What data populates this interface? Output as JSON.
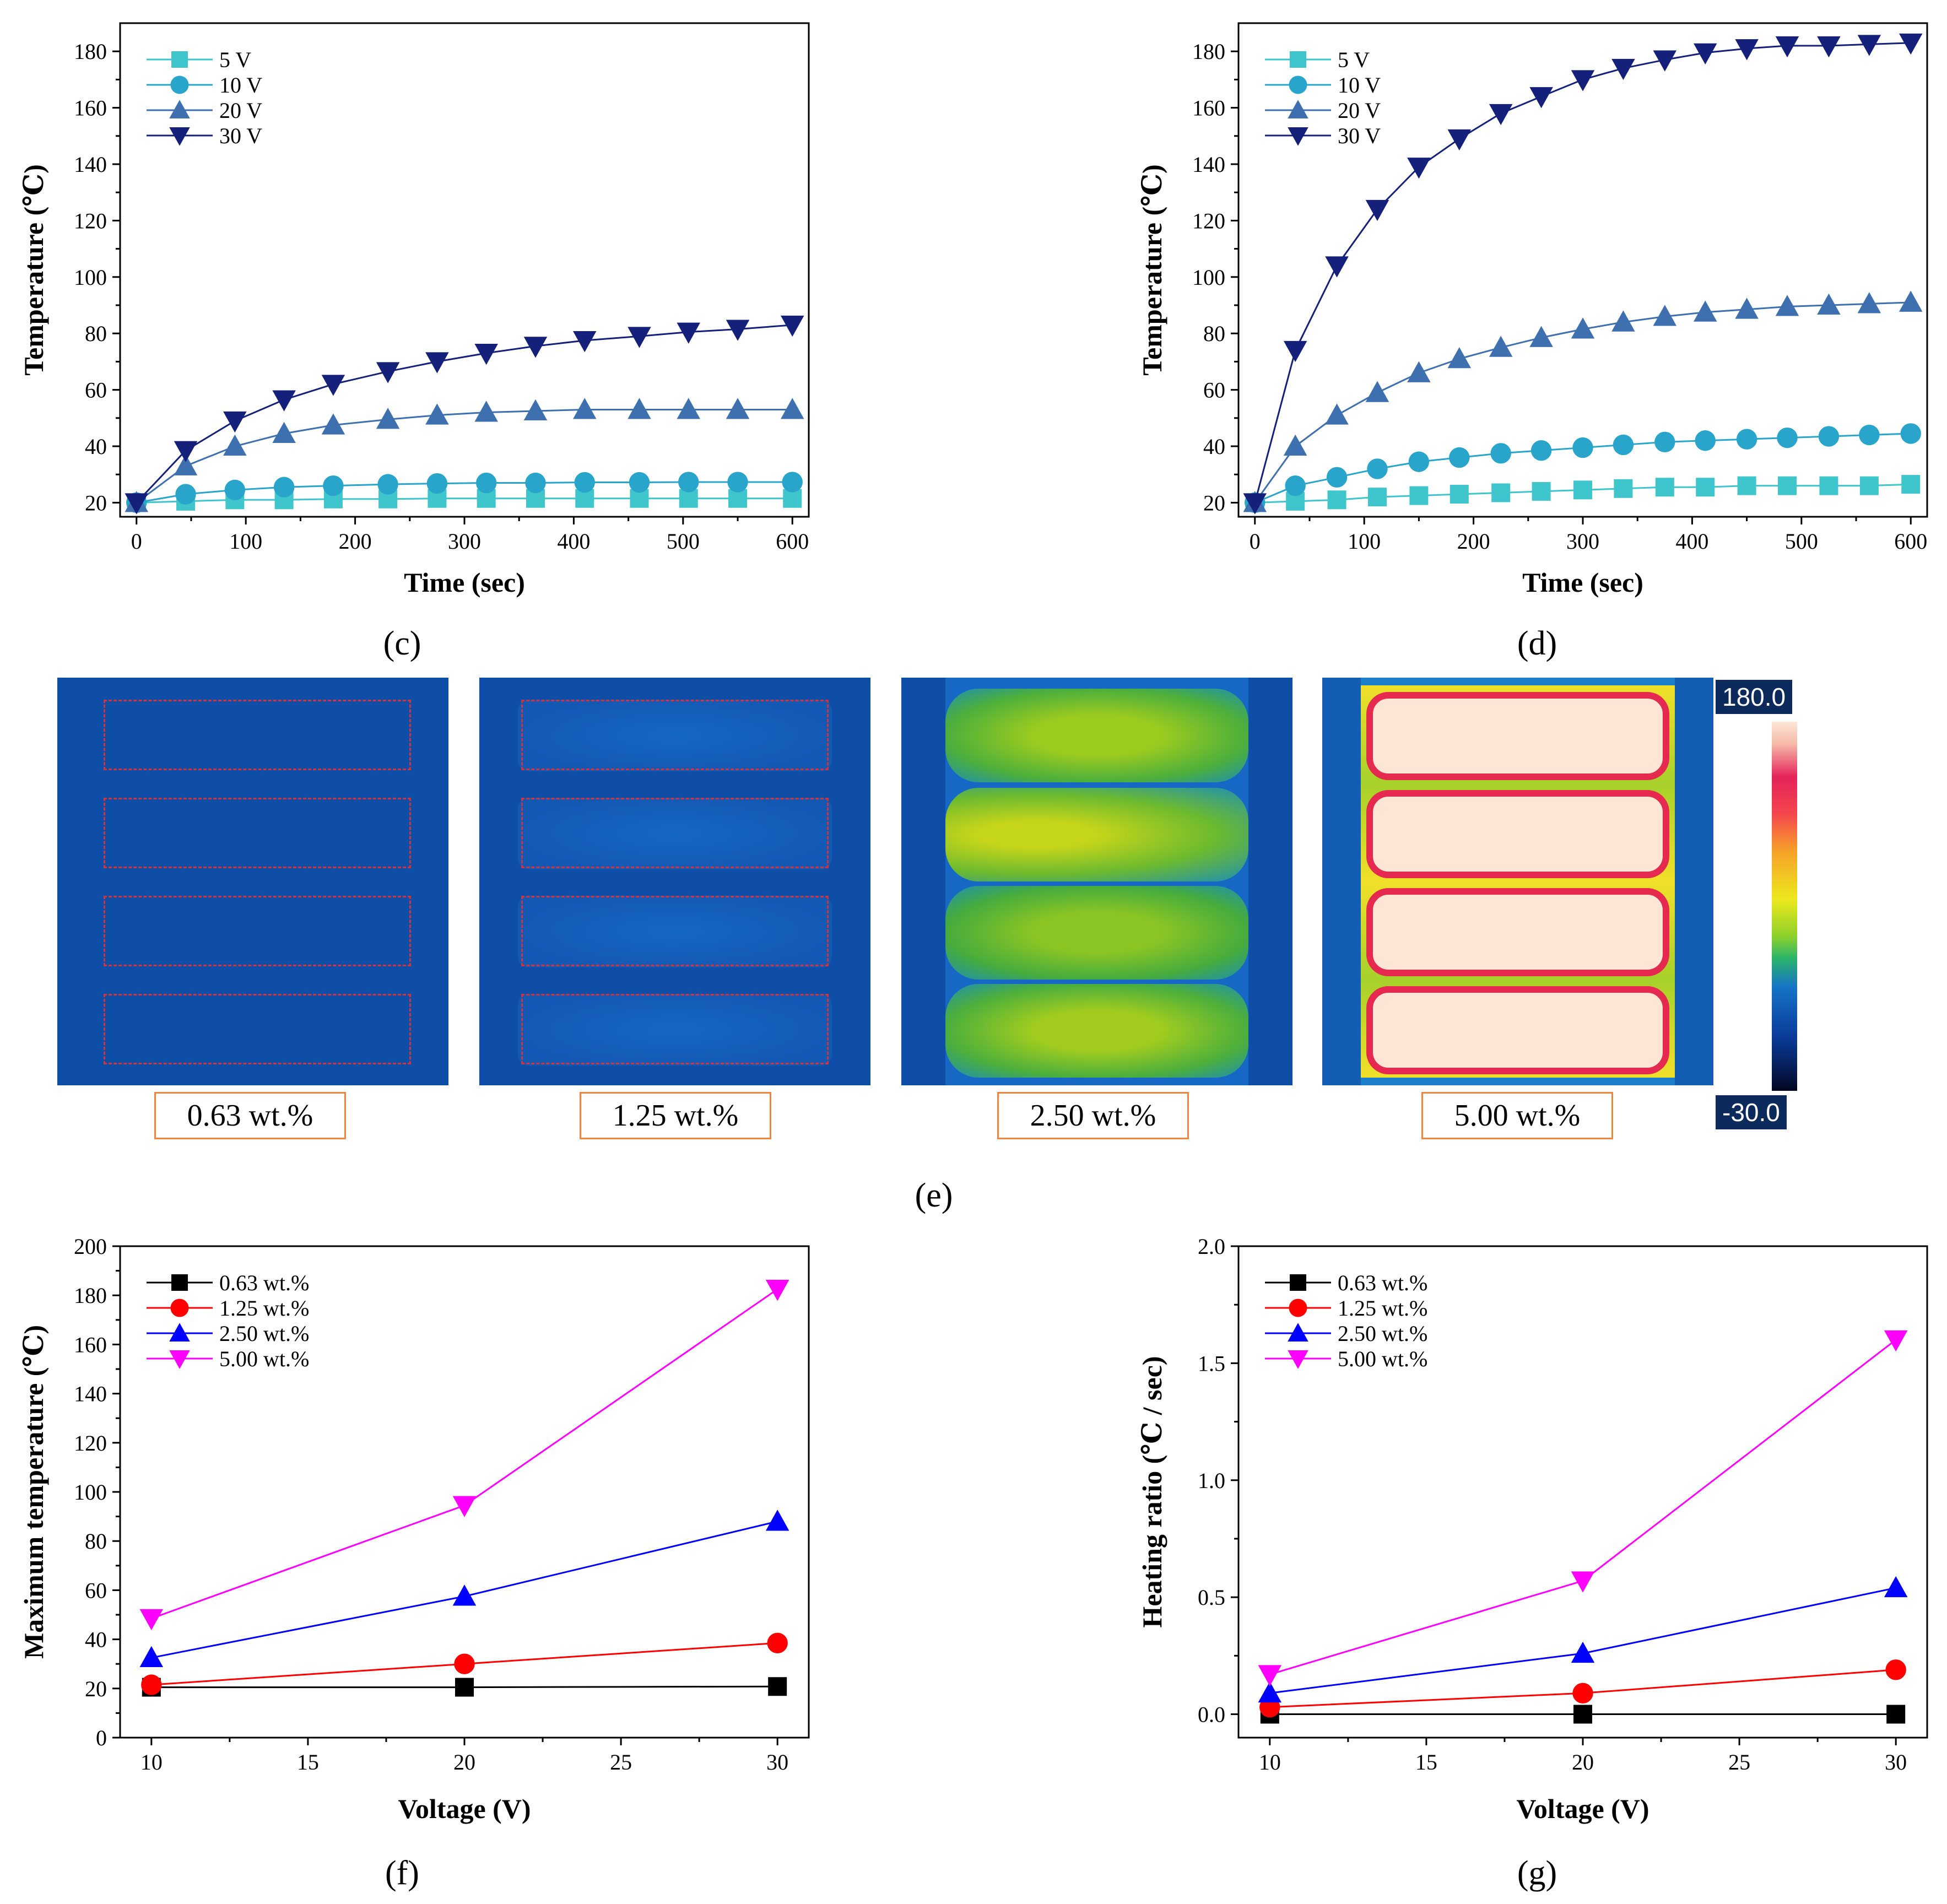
{
  "panels": {
    "c": "(c)",
    "d": "(d)",
    "e": "(e)",
    "f": "(f)",
    "g": "(g)"
  },
  "thermal": {
    "captions": [
      "0.63 wt.%",
      "1.25 wt.%",
      "2.50 wt.%",
      "5.00 wt.%"
    ],
    "scale_max": "180.0",
    "scale_min": "-30.0"
  },
  "chart_data": [
    {
      "id": "c",
      "type": "line",
      "title": "",
      "xlabel": "Time (sec)",
      "ylabel": "Temperature (℃)",
      "xlim": [
        -15,
        615
      ],
      "ylim": [
        15,
        190
      ],
      "xticks": [
        0,
        100,
        200,
        300,
        400,
        500,
        600
      ],
      "yticks": [
        20,
        40,
        60,
        80,
        100,
        120,
        140,
        160,
        180
      ],
      "legend_position": "top-left",
      "x": [
        0,
        45,
        90,
        135,
        180,
        230,
        275,
        320,
        365,
        410,
        460,
        505,
        550,
        600
      ],
      "series": [
        {
          "name": "5 V",
          "label": "  5 V",
          "marker": "square",
          "color": "#3ec6cc",
          "values": [
            20,
            20.5,
            21,
            21,
            21.3,
            21.3,
            21.5,
            21.5,
            21.5,
            21.5,
            21.5,
            21.5,
            21.5,
            21.5
          ]
        },
        {
          "name": "10 V",
          "label": "10 V",
          "marker": "circle",
          "color": "#29a5cc",
          "values": [
            20,
            23,
            24.5,
            25.5,
            26,
            26.5,
            26.8,
            27,
            27,
            27.2,
            27.2,
            27.3,
            27.3,
            27.3
          ]
        },
        {
          "name": "20 V",
          "label": "20 V",
          "marker": "triangle-up",
          "color": "#3e6fae",
          "values": [
            20,
            33,
            40,
            44.5,
            47.5,
            49.5,
            51,
            52,
            52.5,
            53,
            53,
            53,
            53,
            53
          ]
        },
        {
          "name": "30 V",
          "label": "30 V",
          "marker": "triangle-down",
          "color": "#14207a",
          "values": [
            20,
            38.5,
            49,
            56.5,
            62,
            66.5,
            70,
            73,
            75.5,
            77.5,
            79,
            80.5,
            81.5,
            83
          ]
        }
      ]
    },
    {
      "id": "d",
      "type": "line",
      "title": "",
      "xlabel": "Time (sec)",
      "ylabel": "Temperature (℃)",
      "xlim": [
        -15,
        615
      ],
      "ylim": [
        15,
        190
      ],
      "xticks": [
        0,
        100,
        200,
        300,
        400,
        500,
        600
      ],
      "yticks": [
        20,
        40,
        60,
        80,
        100,
        120,
        140,
        160,
        180
      ],
      "legend_position": "top-left",
      "x": [
        0,
        37,
        75,
        112,
        150,
        187,
        225,
        262,
        300,
        337,
        375,
        412,
        450,
        487,
        525,
        562,
        600
      ],
      "series": [
        {
          "name": "5 V",
          "label": "  5 V",
          "marker": "square",
          "color": "#3ec6cc",
          "values": [
            20,
            20.5,
            21,
            22,
            22.5,
            23,
            23.5,
            24,
            24.5,
            25,
            25.5,
            25.5,
            26,
            26,
            26,
            26,
            26.5
          ]
        },
        {
          "name": "10 V",
          "label": "10 V",
          "marker": "circle",
          "color": "#29a5cc",
          "values": [
            20,
            26,
            29,
            32,
            34.5,
            36,
            37.5,
            38.5,
            39.5,
            40.5,
            41.5,
            42,
            42.5,
            43,
            43.5,
            44,
            44.5
          ]
        },
        {
          "name": "20 V",
          "label": "20 V",
          "marker": "triangle-up",
          "color": "#3e6fae",
          "values": [
            20,
            40,
            51,
            59,
            66,
            71,
            75,
            78.5,
            81.5,
            84,
            86,
            87.5,
            88.5,
            89.5,
            90,
            90.5,
            91
          ]
        },
        {
          "name": "30 V",
          "label": "30 V",
          "marker": "triangle-down",
          "color": "#14207a",
          "values": [
            20,
            74,
            104,
            124,
            139,
            149,
            158,
            164,
            170,
            174,
            177,
            179.5,
            181,
            182,
            182,
            182.5,
            183
          ]
        }
      ]
    },
    {
      "id": "f",
      "type": "line",
      "title": "",
      "xlabel": "Voltage (V)",
      "ylabel": "Maximum temperature (℃)",
      "xlim": [
        9,
        31
      ],
      "ylim": [
        0,
        200
      ],
      "xticks": [
        10,
        15,
        20,
        25,
        30
      ],
      "yticks": [
        0,
        20,
        40,
        60,
        80,
        100,
        120,
        140,
        160,
        180,
        200
      ],
      "legend_position": "top-left",
      "x": [
        10,
        20,
        30
      ],
      "series": [
        {
          "name": "0.63 wt.%",
          "label": "0.63 wt.%",
          "marker": "square",
          "color": "#000000",
          "values": [
            20.5,
            20.5,
            20.8
          ]
        },
        {
          "name": "1.25 wt.%",
          "label": "1.25 wt.%",
          "marker": "circle",
          "color": "#ff0000",
          "values": [
            21.5,
            30,
            38.5
          ]
        },
        {
          "name": "2.50 wt.%",
          "label": "2.50 wt.%",
          "marker": "triangle-up",
          "color": "#0000ff",
          "values": [
            32.5,
            57.5,
            88
          ]
        },
        {
          "name": "5.00 wt.%",
          "label": "5.00 wt.%",
          "marker": "triangle-down",
          "color": "#ff00ff",
          "values": [
            48.5,
            94.5,
            182.5
          ]
        }
      ]
    },
    {
      "id": "g",
      "type": "line",
      "title": "",
      "xlabel": "Voltage (V)",
      "ylabel": "Heating ratio (℃ / sec)",
      "xlim": [
        9,
        31
      ],
      "ylim": [
        -0.1,
        2.0
      ],
      "xticks": [
        10,
        15,
        20,
        25,
        30
      ],
      "yticks": [
        0.0,
        0.5,
        1.0,
        1.5,
        2.0
      ],
      "ytick_format": 1,
      "legend_position": "top-left",
      "x": [
        10,
        20,
        30
      ],
      "series": [
        {
          "name": "0.63 wt.%",
          "label": "0.63 wt.%",
          "marker": "square",
          "color": "#000000",
          "values": [
            0.0,
            0.0,
            0.0
          ]
        },
        {
          "name": "1.25 wt.%",
          "label": "1.25 wt.%",
          "marker": "circle",
          "color": "#ff0000",
          "values": [
            0.03,
            0.09,
            0.19
          ]
        },
        {
          "name": "2.50 wt.%",
          "label": "2.50 wt.%",
          "marker": "triangle-up",
          "color": "#0000ff",
          "values": [
            0.09,
            0.26,
            0.54
          ]
        },
        {
          "name": "5.00 wt.%",
          "label": "5.00 wt.%",
          "marker": "triangle-down",
          "color": "#ff00ff",
          "values": [
            0.17,
            0.57,
            1.6
          ]
        }
      ]
    }
  ]
}
